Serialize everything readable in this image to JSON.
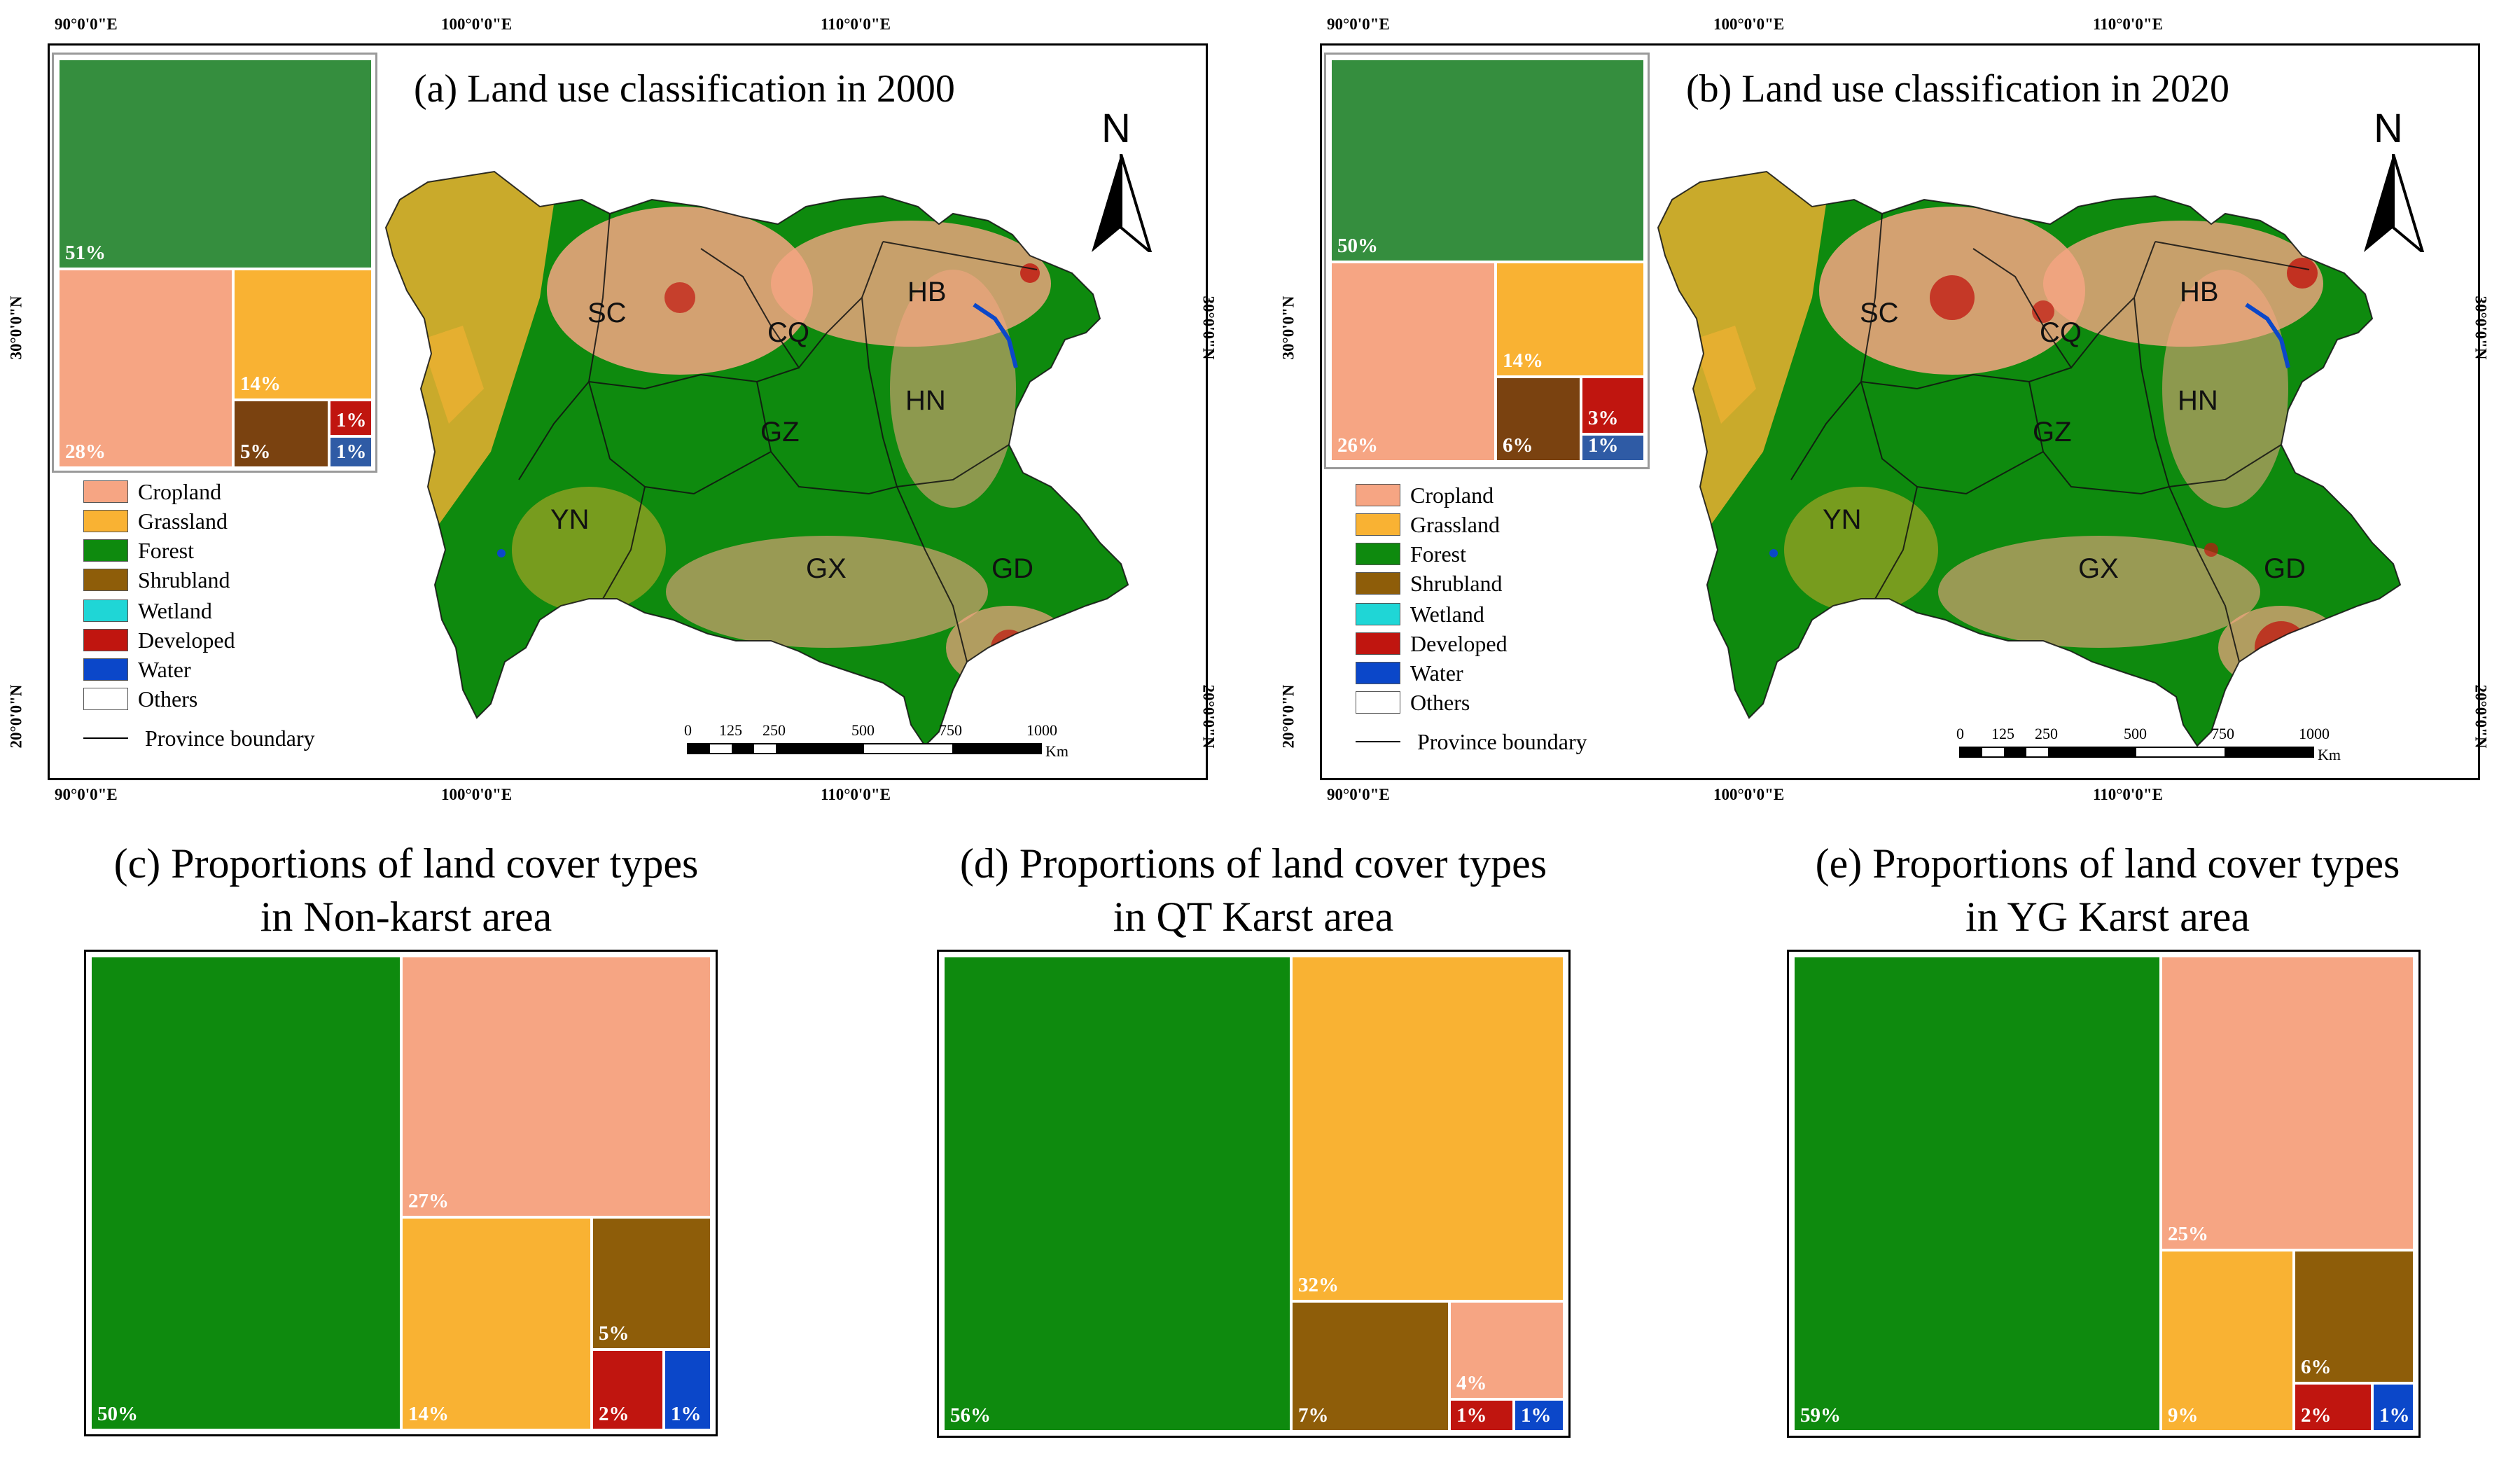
{
  "colors": {
    "cropland": "#F6A583",
    "grassland": "#F9B233",
    "forest": "#0E8A0E",
    "forest_inset": "#358E3E",
    "shrubland": "#8E5D09",
    "shrubland_inset": "#7A4210",
    "wetland": "#1FD6D6",
    "developed": "#C0150F",
    "water": "#0B47C9",
    "water_inset": "#2F5BA5",
    "others": "#FFFFFF"
  },
  "coords": {
    "top": [
      "90°0'0\"E",
      "100°0'0\"E",
      "110°0'0\"E"
    ],
    "bottom": [
      "90°0'0\"E",
      "100°0'0\"E",
      "110°0'0\"E"
    ],
    "left": [
      "30°0'0\"N",
      "20°0'0\"N"
    ],
    "right": [
      "30°0'0\"N",
      "20°0'0\"N"
    ]
  },
  "legend": {
    "items": [
      "Cropland",
      "Grassland",
      "Forest",
      "Shrubland",
      "Wetland",
      "Developed",
      "Water",
      "Others"
    ],
    "boundary_label": "Province boundary"
  },
  "provinces": [
    "SC",
    "CQ",
    "HB",
    "HN",
    "GZ",
    "YN",
    "GX",
    "GD"
  ],
  "north_label": "N",
  "scale": {
    "labels": [
      "0",
      "125",
      "250",
      "500",
      "750",
      "1000"
    ],
    "unit": "Km"
  },
  "maps": [
    {
      "title": "(a) Land use classification in 2000",
      "shares": {
        "forest": "51%",
        "cropland": "28%",
        "grassland": "14%",
        "shrubland": "5%",
        "developed": "1%",
        "water": "1%"
      }
    },
    {
      "title": "(b) Land use classification in 2020",
      "shares": {
        "forest": "50%",
        "cropland": "26%",
        "grassland": "14%",
        "shrubland": "6%",
        "developed": "3%",
        "water": "1%"
      }
    }
  ],
  "panels": [
    {
      "title_line1": "(c) Proportions of land cover types",
      "title_line2": "in Non-karst area",
      "shares": {
        "forest": "50%",
        "cropland": "27%",
        "grassland": "14%",
        "shrubland": "5%",
        "developed": "2%",
        "water": "1%"
      }
    },
    {
      "title_line1": "(d) Proportions of land cover types",
      "title_line2": "in QT Karst area",
      "shares": {
        "forest": "56%",
        "grassland": "32%",
        "shrubland": "7%",
        "cropland": "4%",
        "developed": "1%",
        "water": "1%"
      }
    },
    {
      "title_line1": "(e) Proportions of land cover types",
      "title_line2": "in YG Karst area",
      "shares": {
        "forest": "59%",
        "cropland": "25%",
        "grassland": "9%",
        "shrubland": "6%",
        "developed": "2%",
        "water": "1%"
      }
    }
  ]
}
